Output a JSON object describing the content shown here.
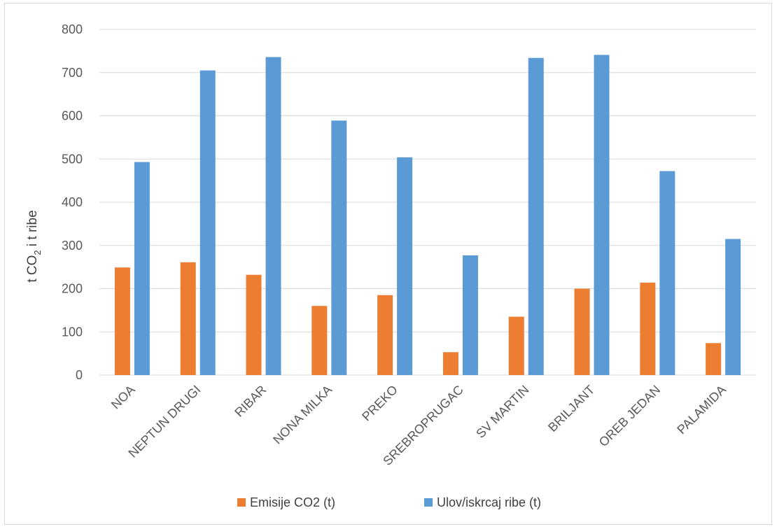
{
  "chart_data": {
    "type": "bar",
    "title": "",
    "ylabel": {
      "pre": "t CO",
      "sub": "2",
      "post": " i t ribe"
    },
    "xlabel": "",
    "ylim": [
      0,
      800
    ],
    "yticks": [
      0,
      100,
      200,
      300,
      400,
      500,
      600,
      700,
      800
    ],
    "categories": [
      "NOA",
      "NEPTUN DRUGI",
      "RIBAR",
      "NONA MILKA",
      "PREKO",
      "SREBROPRUGAC",
      "SV MARTIN",
      "BRILJANT",
      "OREB JEDAN",
      "PALAMIDA"
    ],
    "series": [
      {
        "name": "Emisije CO2 (t)",
        "color": "#ED7D31",
        "values": [
          249,
          261,
          232,
          160,
          185,
          53,
          135,
          200,
          214,
          74
        ]
      },
      {
        "name": "Ulov/iskrcaj ribe (t)",
        "color": "#5B9BD5",
        "values": [
          493,
          705,
          736,
          589,
          504,
          277,
          734,
          741,
          472,
          315
        ]
      }
    ],
    "grid": true,
    "legend_position": "bottom"
  }
}
